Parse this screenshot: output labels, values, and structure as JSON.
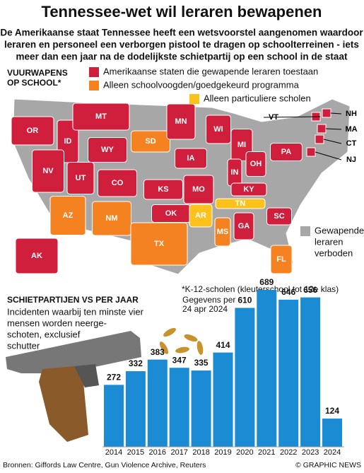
{
  "header": {
    "title": "Tennessee-wet wil leraren bewapenen",
    "subtitle": [
      "De Amerikaanse staat Tennessee heeft een wetsvoorstel aangenomen waardoor",
      "leraren en personeel een verborgen pistool te dragen op schoolterreinen - iets",
      "meer dan een jaar na de dodelijkste schietpartij op een school in de staat"
    ]
  },
  "map": {
    "title": [
      "VUURWAPENS",
      "OP SCHOOL*"
    ],
    "legend": [
      {
        "label": [
          "Amerikaanse staten die gewapende leraren toestaan"
        ],
        "color": "#d01f3c"
      },
      {
        "label": [
          "Alleen schoolvoogden/goedgekeurd programma"
        ],
        "color": "#f58220"
      },
      {
        "label": [
          "Alleen particuliere scholen"
        ],
        "color": "#fcc21b"
      },
      {
        "label": [
          "Gewapende",
          "leraren",
          "verboden"
        ],
        "color": "#a7a7a7"
      }
    ],
    "states": [
      {
        "label": "OR",
        "color": "#d01f3c"
      },
      {
        "label": "ID",
        "color": "#d01f3c"
      },
      {
        "label": "MT",
        "color": "#d01f3c"
      },
      {
        "label": "WY",
        "color": "#d01f3c"
      },
      {
        "label": "SD",
        "color": "#f58220"
      },
      {
        "label": "MN",
        "color": "#d01f3c"
      },
      {
        "label": "NV",
        "color": "#d01f3c"
      },
      {
        "label": "UT",
        "color": "#d01f3c"
      },
      {
        "label": "CO",
        "color": "#d01f3c"
      },
      {
        "label": "KS",
        "color": "#d01f3c"
      },
      {
        "label": "IA",
        "color": "#d01f3c"
      },
      {
        "label": "WI",
        "color": "#d01f3c"
      },
      {
        "label": "MI",
        "color": "#d01f3c"
      },
      {
        "label": "NH",
        "color": "#d01f3c"
      },
      {
        "label": "VT",
        "color": "#d01f3c"
      },
      {
        "label": "MA",
        "color": "#d01f3c"
      },
      {
        "label": "CT",
        "color": "#d01f3c"
      },
      {
        "label": "NJ",
        "color": "#d01f3c"
      },
      {
        "label": "PA",
        "color": "#d01f3c"
      },
      {
        "label": "OH",
        "color": "#d01f3c"
      },
      {
        "label": "IN",
        "color": "#d01f3c"
      },
      {
        "label": "KY",
        "color": "#d01f3c"
      },
      {
        "label": "MO",
        "color": "#d01f3c"
      },
      {
        "label": "OK",
        "color": "#d01f3c"
      },
      {
        "label": "AR",
        "color": "#fcc21b"
      },
      {
        "label": "TN",
        "color": "#fcc21b"
      },
      {
        "label": "NM",
        "color": "#f58220"
      },
      {
        "label": "AZ",
        "color": "#f58220"
      },
      {
        "label": "TX",
        "color": "#f58220"
      },
      {
        "label": "MS",
        "color": "#f58220"
      },
      {
        "label": "GA",
        "color": "#d01f3c"
      },
      {
        "label": "SC",
        "color": "#d01f3c"
      },
      {
        "label": "FL",
        "color": "#f58220"
      },
      {
        "label": "AK",
        "color": "#d01f3c"
      }
    ],
    "footnote": "*K-12-scholen (kleuterschool tot 12e klas)"
  },
  "chart_data": {
    "type": "bar",
    "title": "SCHIETPARTIJEN VS PER JAAR",
    "subtitle": [
      "Incidenten waarbij ten minste vier",
      "mensen worden neerge-",
      "schoten, exclusief",
      "schutter"
    ],
    "annotation": [
      "Gegevens per",
      "24 apr 2024"
    ],
    "categories": [
      "2014",
      "2015",
      "2016",
      "2017",
      "2018",
      "2019",
      "2020",
      "2021",
      "2022",
      "2023",
      "2024"
    ],
    "values": [
      272,
      332,
      383,
      347,
      335,
      414,
      610,
      689,
      646,
      656,
      124
    ],
    "color": "#1b8bd3"
  },
  "footer": {
    "source": "Bronnen: Giffords Law Centre, Gun Violence Archive, Reuters",
    "credit": "© GRAPHIC NEWS"
  }
}
